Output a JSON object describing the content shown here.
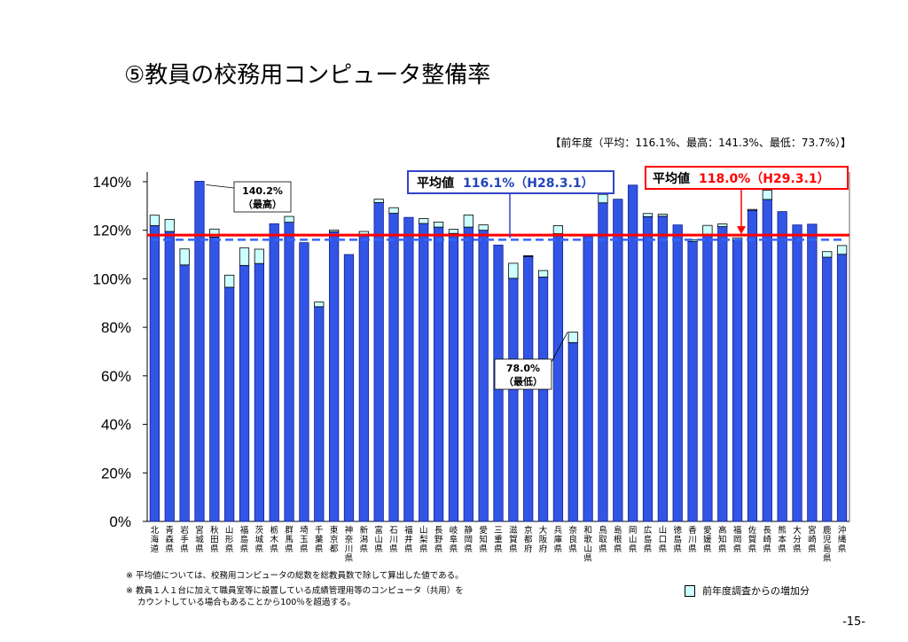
{
  "page": {
    "title": "⑤教員の校務用コンピュータ整備率",
    "prev_year_note": "【前年度（平均：116.1%、最高：141.3%、最低：73.7%）】",
    "notes": [
      "※ 平均値については、校務用コンピュータの総数を総教員数で除して算出した値である。",
      "※ 教員１人１台に加えて職員室等に設置している成績管理用等のコンピュータ（共用）を",
      "カウントしている場合もあることから100％を超過する。"
    ],
    "legend_increase": "前年度調査からの増加分",
    "page_number": "-15-"
  },
  "colors": {
    "bar": "#3355e6",
    "bar_edge": "#10208a",
    "increase": "#ccffff",
    "avg_current": "#ff0000",
    "avg_prev": "#3366ff",
    "box_prev_border": "#3344cc",
    "box_prev_text": "#2244bb"
  },
  "chart_data": {
    "type": "bar",
    "stacked": true,
    "ylim": [
      0,
      140
    ],
    "yticks": [
      0,
      20,
      40,
      60,
      80,
      100,
      120,
      140
    ],
    "ytick_labels": [
      "0%",
      "20%",
      "40%",
      "60%",
      "80%",
      "100%",
      "120%",
      "140%"
    ],
    "categories": [
      "北海道",
      "青森県",
      "岩手県",
      "宮城県",
      "秋田県",
      "山形県",
      "福島県",
      "茨城県",
      "栃木県",
      "群馬県",
      "埼玉県",
      "千葉県",
      "東京都",
      "神奈川県",
      "新潟県",
      "富山県",
      "石川県",
      "福井県",
      "山梨県",
      "長野県",
      "岐阜県",
      "静岡県",
      "愛知県",
      "三重県",
      "滋賀県",
      "京都府",
      "大阪府",
      "兵庫県",
      "奈良県",
      "和歌山県",
      "鳥取県",
      "島根県",
      "岡山県",
      "広島県",
      "山口県",
      "徳島県",
      "香川県",
      "愛媛県",
      "高知県",
      "福岡県",
      "佐賀県",
      "長崎県",
      "熊本県",
      "大分県",
      "宮崎県",
      "鹿児島県",
      "沖縄県"
    ],
    "series": [
      {
        "name": "前年度",
        "values": [
          121.9,
          119.5,
          105.7,
          140.2,
          117.2,
          96.5,
          105.5,
          106.3,
          122.7,
          123.3,
          114.9,
          88.5,
          119.4,
          110.0,
          118.4,
          131.4,
          127.0,
          125.3,
          122.8,
          121.3,
          118.7,
          121.3,
          120.0,
          113.9,
          100.2,
          109.2,
          100.7,
          118.6,
          73.7,
          118.0,
          131.3,
          132.8,
          138.6,
          125.6,
          125.8,
          122.2,
          115.4,
          118.4,
          121.5,
          115.9,
          128.2,
          132.7,
          127.7,
          122.2,
          122.5,
          108.9,
          110.1
        ]
      },
      {
        "name": "前年度調査からの増加分",
        "values": [
          4.3,
          5.0,
          6.6,
          0.0,
          3.3,
          5.0,
          7.2,
          5.9,
          0.0,
          2.4,
          0.0,
          1.9,
          0.7,
          0.0,
          1.1,
          1.4,
          2.3,
          0.0,
          2.0,
          2.1,
          1.7,
          5.0,
          2.2,
          0.0,
          6.2,
          0.3,
          2.7,
          3.3,
          4.3,
          0.0,
          3.5,
          0.0,
          0.0,
          1.3,
          0.8,
          0.0,
          0.7,
          3.6,
          1.1,
          1.0,
          0.4,
          3.8,
          0.0,
          0.0,
          0.0,
          2.3,
          3.6
        ]
      }
    ],
    "average_current": {
      "value": 118.0,
      "label_title": "平均値",
      "label_value": "118.0%（H29.3.1）"
    },
    "average_previous": {
      "value": 116.1,
      "label_title": "平均値",
      "label_value": "116.1%（H28.3.1）"
    },
    "max_annotation": {
      "category": "宮城県",
      "value_label": "140.2%",
      "note": "（最高）"
    },
    "min_annotation": {
      "category": "奈良県",
      "value_label": "78.0%",
      "note": "（最低）"
    }
  }
}
